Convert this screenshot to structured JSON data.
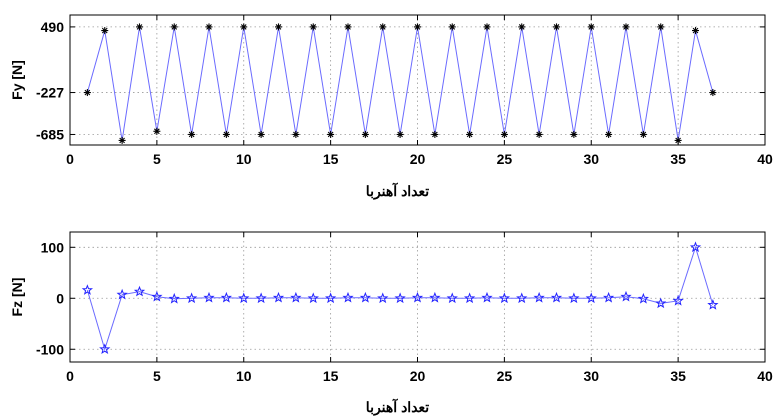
{
  "chart_data": [
    {
      "type": "line",
      "xlabel": "تعداد آهنربا",
      "ylabel": "Fy [N]",
      "xlim": [
        0,
        40
      ],
      "ylim": [
        -800,
        620
      ],
      "xticks": [
        0,
        5,
        10,
        15,
        20,
        25,
        30,
        35,
        40
      ],
      "xtick_labels": [
        "0",
        "5",
        "10",
        "15",
        "20",
        "25",
        "30",
        "35",
        "40"
      ],
      "yticks": [
        490,
        -227,
        -685
      ],
      "ytick_labels": [
        "490",
        "-227",
        "-685"
      ],
      "grid": true,
      "marker": "asterisk",
      "colors": {
        "line": "#6b6bff",
        "marker": "#000000"
      },
      "series": [
        {
          "x": [
            1,
            2,
            3,
            4,
            5,
            6,
            7,
            8,
            9,
            10,
            11,
            12,
            13,
            14,
            15,
            16,
            17,
            18,
            19,
            20,
            21,
            22,
            23,
            24,
            25,
            26,
            27,
            28,
            29,
            30,
            31,
            32,
            33,
            34,
            35,
            36,
            37
          ],
          "values": [
            -227,
            450,
            -750,
            490,
            -650,
            490,
            -685,
            490,
            -685,
            490,
            -685,
            490,
            -685,
            490,
            -685,
            490,
            -685,
            490,
            -685,
            490,
            -685,
            490,
            -685,
            490,
            -685,
            490,
            -685,
            490,
            -685,
            490,
            -685,
            490,
            -685,
            490,
            -750,
            450,
            -227
          ]
        }
      ]
    },
    {
      "type": "line",
      "xlabel": "تعداد آهنربا",
      "ylabel": "Fz [N]",
      "xlim": [
        0,
        40
      ],
      "ylim": [
        -125,
        130
      ],
      "xticks": [
        0,
        5,
        10,
        15,
        20,
        25,
        30,
        35,
        40
      ],
      "xtick_labels": [
        "0",
        "5",
        "10",
        "15",
        "20",
        "25",
        "30",
        "35",
        "40"
      ],
      "yticks": [
        100,
        0,
        -100
      ],
      "ytick_labels": [
        "100",
        "0",
        "-100"
      ],
      "grid": true,
      "marker": "star",
      "colors": {
        "line": "#6b6bff",
        "marker": "#2222ff"
      },
      "series": [
        {
          "x": [
            1,
            2,
            3,
            4,
            5,
            6,
            7,
            8,
            9,
            10,
            11,
            12,
            13,
            14,
            15,
            16,
            17,
            18,
            19,
            20,
            21,
            22,
            23,
            24,
            25,
            26,
            27,
            28,
            29,
            30,
            31,
            32,
            33,
            34,
            35,
            36,
            37
          ],
          "values": [
            16,
            -100,
            7,
            13,
            3,
            -1,
            0,
            1,
            1,
            0,
            0,
            1,
            1,
            0,
            0,
            1,
            1,
            0,
            0,
            1,
            1,
            0,
            0,
            1,
            0,
            0,
            1,
            1,
            0,
            0,
            1,
            3,
            -1,
            -10,
            -5,
            100,
            -13
          ]
        }
      ]
    }
  ]
}
